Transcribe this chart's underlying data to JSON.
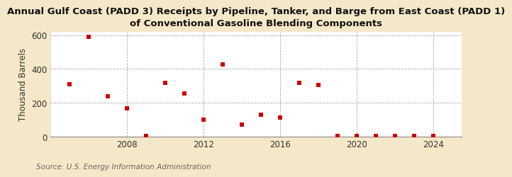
{
  "title": "Annual Gulf Coast (PADD 3) Receipts by Pipeline, Tanker, and Barge from East Coast (PADD 1)\nof Conventional Gasoline Blending Components",
  "ylabel": "Thousand Barrels",
  "source": "Source: U.S. Energy Information Administration",
  "background_color": "#f5e8c8",
  "plot_background_color": "#ffffff",
  "years": [
    2005,
    2006,
    2007,
    2008,
    2009,
    2010,
    2011,
    2012,
    2013,
    2014,
    2015,
    2016,
    2017,
    2018,
    2019,
    2020,
    2021,
    2022,
    2023,
    2024
  ],
  "values": [
    310,
    590,
    240,
    170,
    5,
    320,
    255,
    100,
    425,
    70,
    130,
    115,
    320,
    305,
    5,
    5,
    5,
    5,
    5,
    5
  ],
  "marker_color": "#cc0000",
  "marker": "s",
  "marker_size": 4,
  "xlim": [
    2004,
    2025.5
  ],
  "ylim": [
    0,
    620
  ],
  "yticks": [
    0,
    200,
    400,
    600
  ],
  "xticks": [
    2008,
    2012,
    2016,
    2020,
    2024
  ],
  "grid_color": "#aaaaaa",
  "grid_linestyle": "--",
  "title_fontsize": 9.5,
  "axis_fontsize": 8.5,
  "source_fontsize": 7.5
}
